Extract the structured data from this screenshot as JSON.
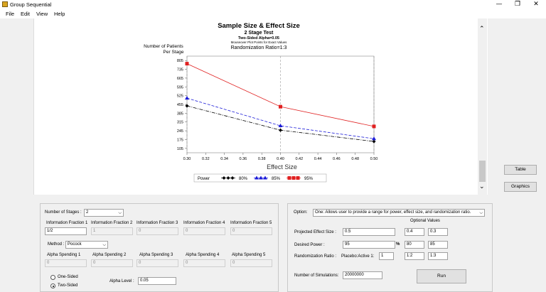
{
  "window": {
    "title": "Group Sequential"
  },
  "menu": [
    "File",
    "Edit",
    "View",
    "Help"
  ],
  "chart_data": {
    "type": "line",
    "title": "Sample Size & Effect Size",
    "subtitle": "2 Stage Test",
    "subtitle2": "Two-Sided Alpha=0.05",
    "note": "Mouseover Plot Points for Exact Values",
    "ratio": "Randomization Ratio=1:3",
    "ylabel_line1": "Number of Patients",
    "ylabel_line2": "Per Stage",
    "xlabel": "Effect Size",
    "x": [
      0.3,
      0.4,
      0.5
    ],
    "xticks": [
      "0.30",
      "0.32",
      "0.34",
      "0.36",
      "0.38",
      "0.40",
      "0.42",
      "0.44",
      "0.46",
      "0.48",
      "0.50"
    ],
    "yticks": [
      "805",
      "735",
      "665",
      "595",
      "525",
      "455",
      "385",
      "315",
      "245",
      "175",
      "105"
    ],
    "ylim": [
      70,
      840
    ],
    "xlim": [
      0.3,
      0.5
    ],
    "legend_title": "Power",
    "series": [
      {
        "name": "80%",
        "values": [
          444,
          250,
          160
        ],
        "color": "#000000",
        "marker": "diamond"
      },
      {
        "name": "85%",
        "values": [
          505,
          285,
          182
        ],
        "color": "#1a1ad8",
        "marker": "triangle"
      },
      {
        "name": "95%",
        "values": [
          780,
          437,
          280
        ],
        "color": "#e02020",
        "marker": "square"
      }
    ]
  },
  "side_buttons": {
    "table": "Table",
    "graphics": "Graphics"
  },
  "left_panel": {
    "stages_label": "Number of Stages :",
    "stages_value": "2",
    "info_fraction_labels": [
      "Information Fraction 1",
      "Information Fraction 2",
      "Information Fraction 3",
      "Information Fraction 4",
      "Information Fraction 5"
    ],
    "info_fraction_values": [
      "1/2",
      "1",
      "0",
      "0",
      "0"
    ],
    "method_label": "Method :",
    "method_value": "Pocock",
    "alpha_spending_labels": [
      "Alpha Spending 1",
      "Alpha Spending 2",
      "Alpha Spending 3",
      "Alpha Spending 4",
      "Alpha Spending 5"
    ],
    "alpha_spending_values": [
      "0",
      "0",
      "0",
      "0",
      "0"
    ],
    "one_sided": "One-Sided",
    "two_sided": "Two-Sided",
    "alpha_level_label": "Alpha Level :",
    "alpha_level_value": "0.05"
  },
  "right_panel": {
    "option_label": "Option:",
    "option_value": "One: Allows user to provide a range for power, effect size, and randomization ratio.",
    "optional_values": "Optional Values",
    "effect_label": "Projected Effect Size :",
    "effect_value": "0.5",
    "effect_opt1": "0.4",
    "effect_opt2": "0.3",
    "power_label": "Desired Power :",
    "power_value": "95",
    "percent": "%",
    "power_opt1": "80",
    "power_opt2": "85",
    "ratio_label": "Randomization Ratio :",
    "ratio_sub": "Placebo:Active 1:",
    "ratio_value": "1",
    "ratio_opt1": "1:2",
    "ratio_opt2": "1:3",
    "sims_label": "Number of Simulations:",
    "sims_value": "20000000",
    "run": "Run"
  }
}
